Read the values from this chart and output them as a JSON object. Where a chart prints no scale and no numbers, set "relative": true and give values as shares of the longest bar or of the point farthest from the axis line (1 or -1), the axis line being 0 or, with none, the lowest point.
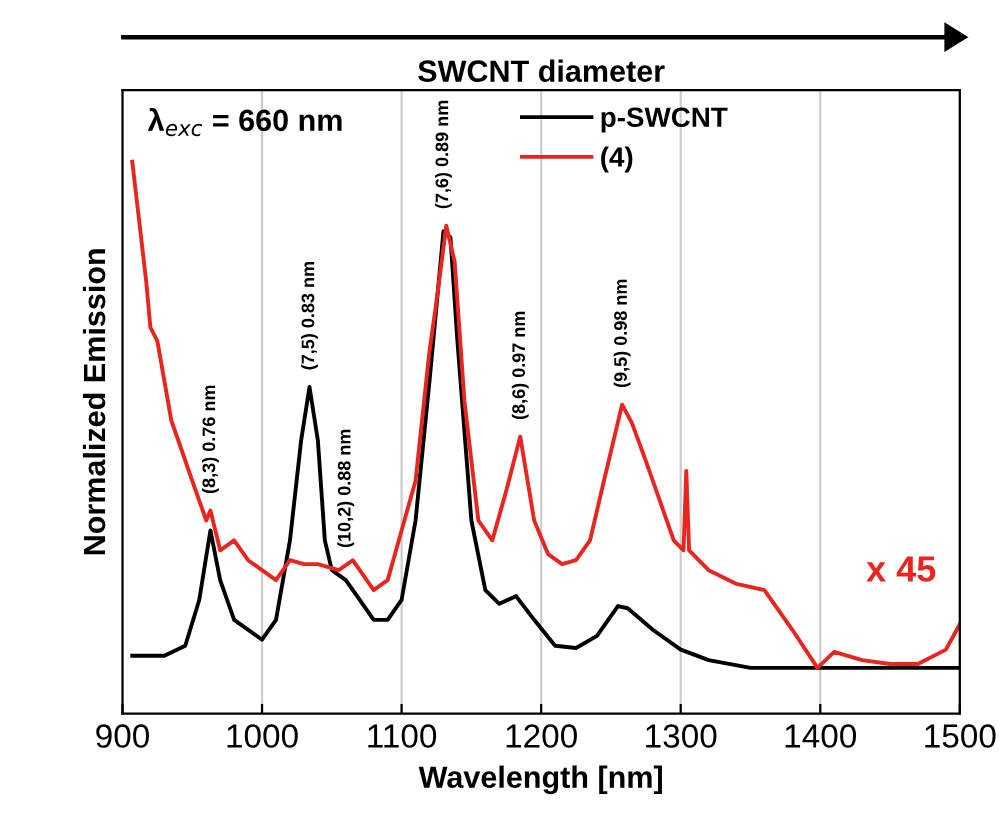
{
  "chart_data": {
    "type": "line",
    "title": "SWCNT diameter",
    "xlabel": "Wavelength [nm]",
    "ylabel": "Normalized Emission",
    "relative": true,
    "xlim": [
      900,
      1500
    ],
    "xticks": [
      900,
      1000,
      1100,
      1200,
      1300,
      1400,
      1500
    ],
    "grid": "x",
    "legend": "top",
    "marker": "none",
    "line_style": "solid",
    "series": [
      {
        "name": "p-SWCNT",
        "color": "#000000",
        "x": [
          907,
          930,
          945,
          955,
          963,
          970,
          980,
          1000,
          1010,
          1020,
          1028,
          1034,
          1040,
          1045,
          1050,
          1060,
          1070,
          1080,
          1090,
          1100,
          1110,
          1120,
          1130,
          1135,
          1140,
          1150,
          1160,
          1170,
          1182,
          1195,
          1210,
          1225,
          1240,
          1255,
          1262,
          1280,
          1300,
          1320,
          1350,
          1400,
          1500
        ],
        "values": [
          0.105,
          0.105,
          0.123,
          0.206,
          0.332,
          0.242,
          0.17,
          0.134,
          0.17,
          0.314,
          0.495,
          0.592,
          0.495,
          0.314,
          0.26,
          0.242,
          0.206,
          0.17,
          0.17,
          0.206,
          0.35,
          0.603,
          0.874,
          0.863,
          0.675,
          0.35,
          0.224,
          0.199,
          0.213,
          0.17,
          0.123,
          0.119,
          0.141,
          0.195,
          0.191,
          0.152,
          0.116,
          0.097,
          0.083,
          0.083,
          0.083
        ]
      },
      {
        "name": "(4)",
        "color": "#e8251f",
        "x": [
          907,
          912,
          917,
          920,
          925,
          930,
          935,
          940,
          950,
          960,
          963,
          970,
          980,
          990,
          1000,
          1010,
          1020,
          1030,
          1040,
          1055,
          1065,
          1080,
          1090,
          1100,
          1110,
          1120,
          1125,
          1132,
          1138,
          1145,
          1155,
          1165,
          1175,
          1185,
          1195,
          1205,
          1215,
          1225,
          1235,
          1245,
          1258,
          1265,
          1275,
          1285,
          1295,
          1302,
          1304,
          1306,
          1320,
          1340,
          1360,
          1380,
          1398,
          1410,
          1430,
          1450,
          1470,
          1490,
          1500
        ],
        "values": [
          1.0,
          0.892,
          0.783,
          0.7,
          0.675,
          0.603,
          0.531,
          0.495,
          0.422,
          0.35,
          0.368,
          0.296,
          0.314,
          0.278,
          0.26,
          0.242,
          0.278,
          0.271,
          0.271,
          0.26,
          0.278,
          0.224,
          0.242,
          0.332,
          0.422,
          0.657,
          0.747,
          0.884,
          0.819,
          0.567,
          0.35,
          0.314,
          0.404,
          0.502,
          0.35,
          0.289,
          0.271,
          0.278,
          0.314,
          0.422,
          0.56,
          0.527,
          0.458,
          0.386,
          0.314,
          0.296,
          0.44,
          0.296,
          0.26,
          0.235,
          0.224,
          0.152,
          0.083,
          0.112,
          0.097,
          0.09,
          0.09,
          0.116,
          0.162
        ]
      }
    ],
    "annotations": [
      "λ$_{exc}$ = 660 nm",
      {
        "text": "(8,3) 0.76 nm",
        "x": 963,
        "y": 0.368
      },
      {
        "text": "(7,5) 0.83 nm",
        "x": 1034,
        "y": 0.592
      },
      {
        "text": "(10,2) 0.88 nm",
        "x": 1060,
        "y": 0.27
      },
      {
        "text": "(7,6) 0.89 nm",
        "x": 1130,
        "y": 0.884
      },
      {
        "text": "(8,6) 0.97 nm",
        "x": 1185,
        "y": 0.502
      },
      {
        "text": "(9,5) 0.98 nm",
        "x": 1258,
        "y": 0.56
      },
      "x 45"
    ]
  }
}
